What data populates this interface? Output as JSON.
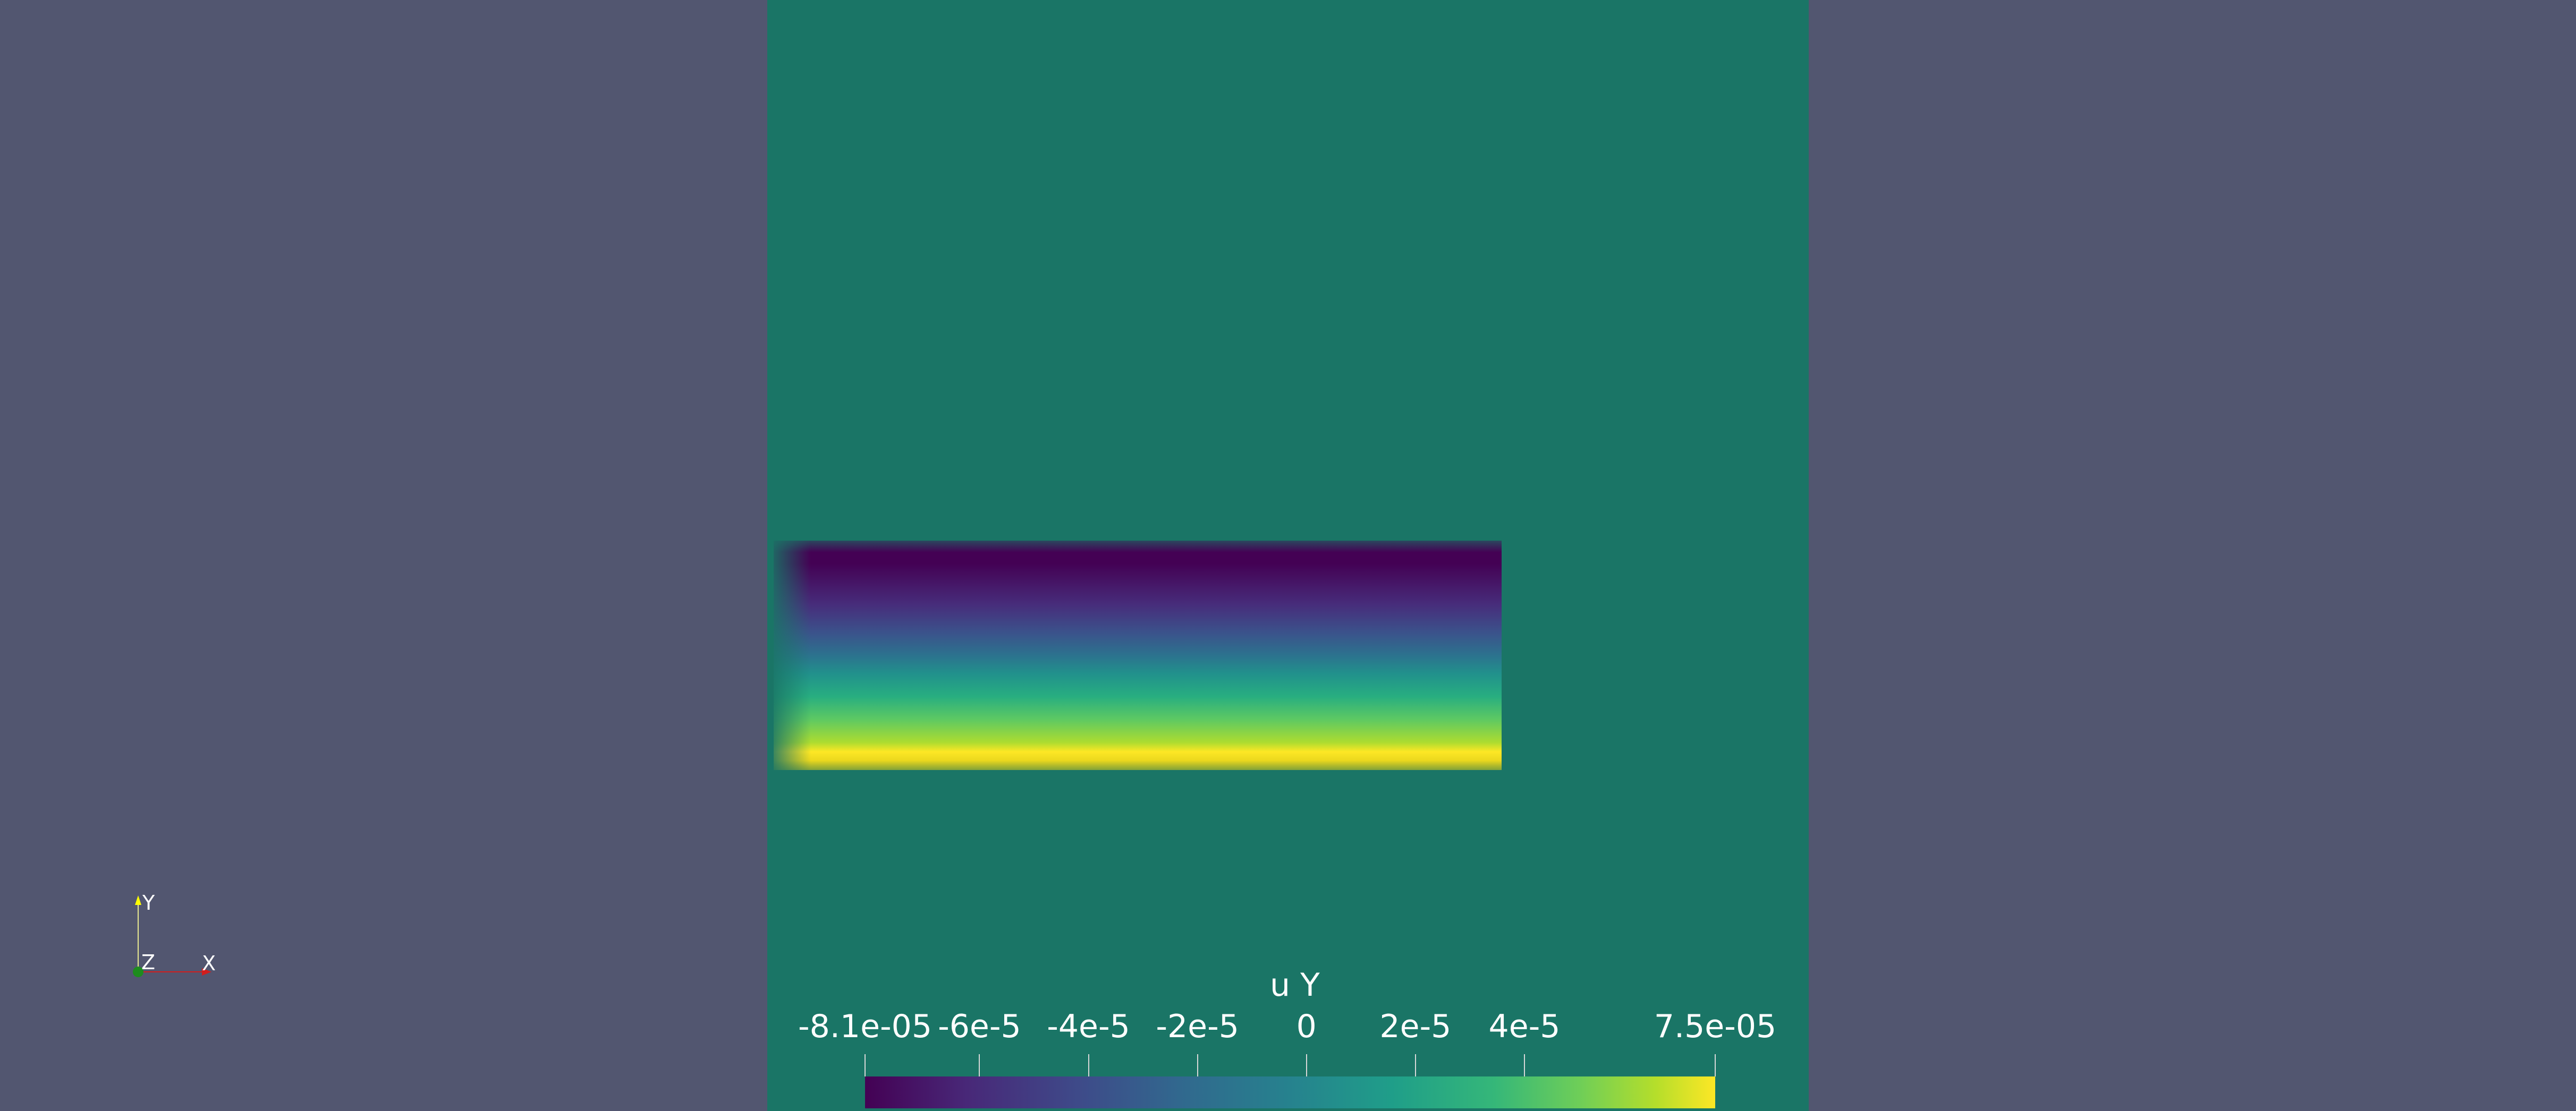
{
  "colorbar": {
    "title": "u Y",
    "ticks": [
      {
        "label": "-8.1e-05",
        "value": -8.1e-05
      },
      {
        "label": "-6e-5",
        "value": -6e-05
      },
      {
        "label": "-4e-5",
        "value": -4e-05
      },
      {
        "label": "-2e-5",
        "value": -2e-05
      },
      {
        "label": "0",
        "value": 0
      },
      {
        "label": "2e-5",
        "value": 2e-05
      },
      {
        "label": "4e-5",
        "value": 4e-05
      },
      {
        "label": "7.5e-05",
        "value": 7.5e-05
      }
    ],
    "range": [
      -8.1e-05,
      7.5e-05
    ],
    "colormap": "viridis"
  },
  "axes": {
    "x_label": "X",
    "y_label": "Y",
    "z_label": "Z",
    "x_color": "#d11d1d",
    "y_color": "#ffff00",
    "z_color": "#1d8c1d"
  },
  "colors": {
    "background": "#525670",
    "domain": "#1a7566"
  }
}
